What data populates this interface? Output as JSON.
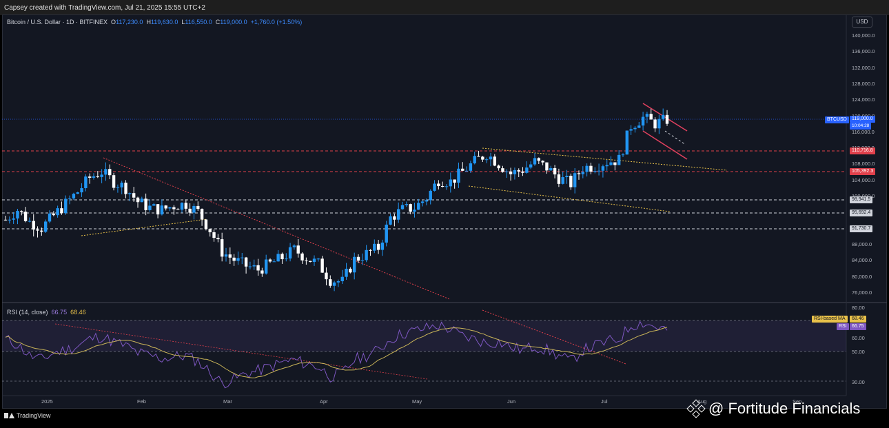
{
  "header": {
    "attribution": "Capsey created with TradingView.com, Jul 21, 2025 15:55 UTC+2"
  },
  "legend": {
    "symbol": "Bitcoin / U.S. Dollar · 1D · BITFINEX",
    "open_label": "O",
    "open": "117,230.0",
    "high_label": "H",
    "high": "119,630.0",
    "low_label": "L",
    "low": "116,550.0",
    "close_label": "C",
    "close": "119,000.0",
    "change": "+1,760.0 (+1.50%)"
  },
  "price_axis": {
    "currency": "USD",
    "ticks": [
      "140,000.0",
      "136,000.0",
      "132,000.0",
      "128,000.0",
      "124,000.0",
      "120,000.0",
      "116,000.0",
      "112,000.0",
      "108,000.0",
      "104,000.0",
      "100,000.0",
      "96,000.0",
      "92,000.0",
      "88,000.0",
      "84,000.0",
      "80,000.0",
      "76,000.0"
    ]
  },
  "level_tags": {
    "symbol_tag": "BTCUSD",
    "last_price": "119,000.0",
    "countdown": "10:04:28",
    "resistance_1": "110,716.8",
    "resistance_2": "105,392.3",
    "support_1": "98,941.5",
    "support_2": "95,692.4",
    "support_3": "91,730.7"
  },
  "rsi": {
    "title": "RSI (14, close)",
    "value": "66.75",
    "ma_value": "68.46",
    "ma_tag": "RSI-based MA",
    "rsi_tag": "RSI",
    "ticks": [
      "80.00",
      "60.00",
      "50.00",
      "30.00"
    ]
  },
  "time_axis": {
    "labels": [
      "2025",
      "Feb",
      "Mar",
      "Apr",
      "May",
      "Jun",
      "Jul",
      "Aug",
      "Sep"
    ]
  },
  "footer": {
    "brand": "TradingView"
  },
  "watermark": {
    "text": "@ Fortitude Financials"
  },
  "colors": {
    "bull": "#2196f3",
    "bear": "#ffffff",
    "background": "#131722",
    "rsi_line": "#7e57c2",
    "rsi_ma": "#c9b458"
  },
  "chart_data": {
    "type": "candlestick",
    "symbol": "Bitcoin / U.S. Dollar",
    "interval": "1D",
    "y_range": [
      74000,
      142000
    ],
    "closes_approx": [
      94000,
      96500,
      93500,
      92000,
      95000,
      98000,
      101000,
      104500,
      106000,
      103500,
      102000,
      98500,
      97000,
      96500,
      97500,
      98000,
      96000,
      91500,
      86000,
      84000,
      82500,
      81500,
      83000,
      84500,
      86500,
      84500,
      83000,
      79000,
      78500,
      84000,
      85500,
      87000,
      94500,
      96500,
      97000,
      99500,
      104000,
      103500,
      106000,
      108500,
      110500,
      108000,
      105500,
      106500,
      108500,
      107000,
      104500,
      103000,
      107000,
      107500,
      108500,
      109000,
      117500,
      119500,
      118000,
      119000
    ],
    "rsi_approx": [
      60,
      56,
      48,
      45,
      50,
      52,
      55,
      60,
      62,
      58,
      55,
      50,
      48,
      46,
      47,
      48,
      44,
      36,
      28,
      31,
      35,
      37,
      40,
      43,
      45,
      42,
      40,
      33,
      35,
      45,
      48,
      52,
      60,
      64,
      66,
      68,
      70,
      67,
      62,
      60,
      57,
      58,
      54,
      52,
      55,
      52,
      48,
      44,
      52,
      55,
      58,
      60,
      70,
      72,
      69,
      66.75
    ]
  }
}
